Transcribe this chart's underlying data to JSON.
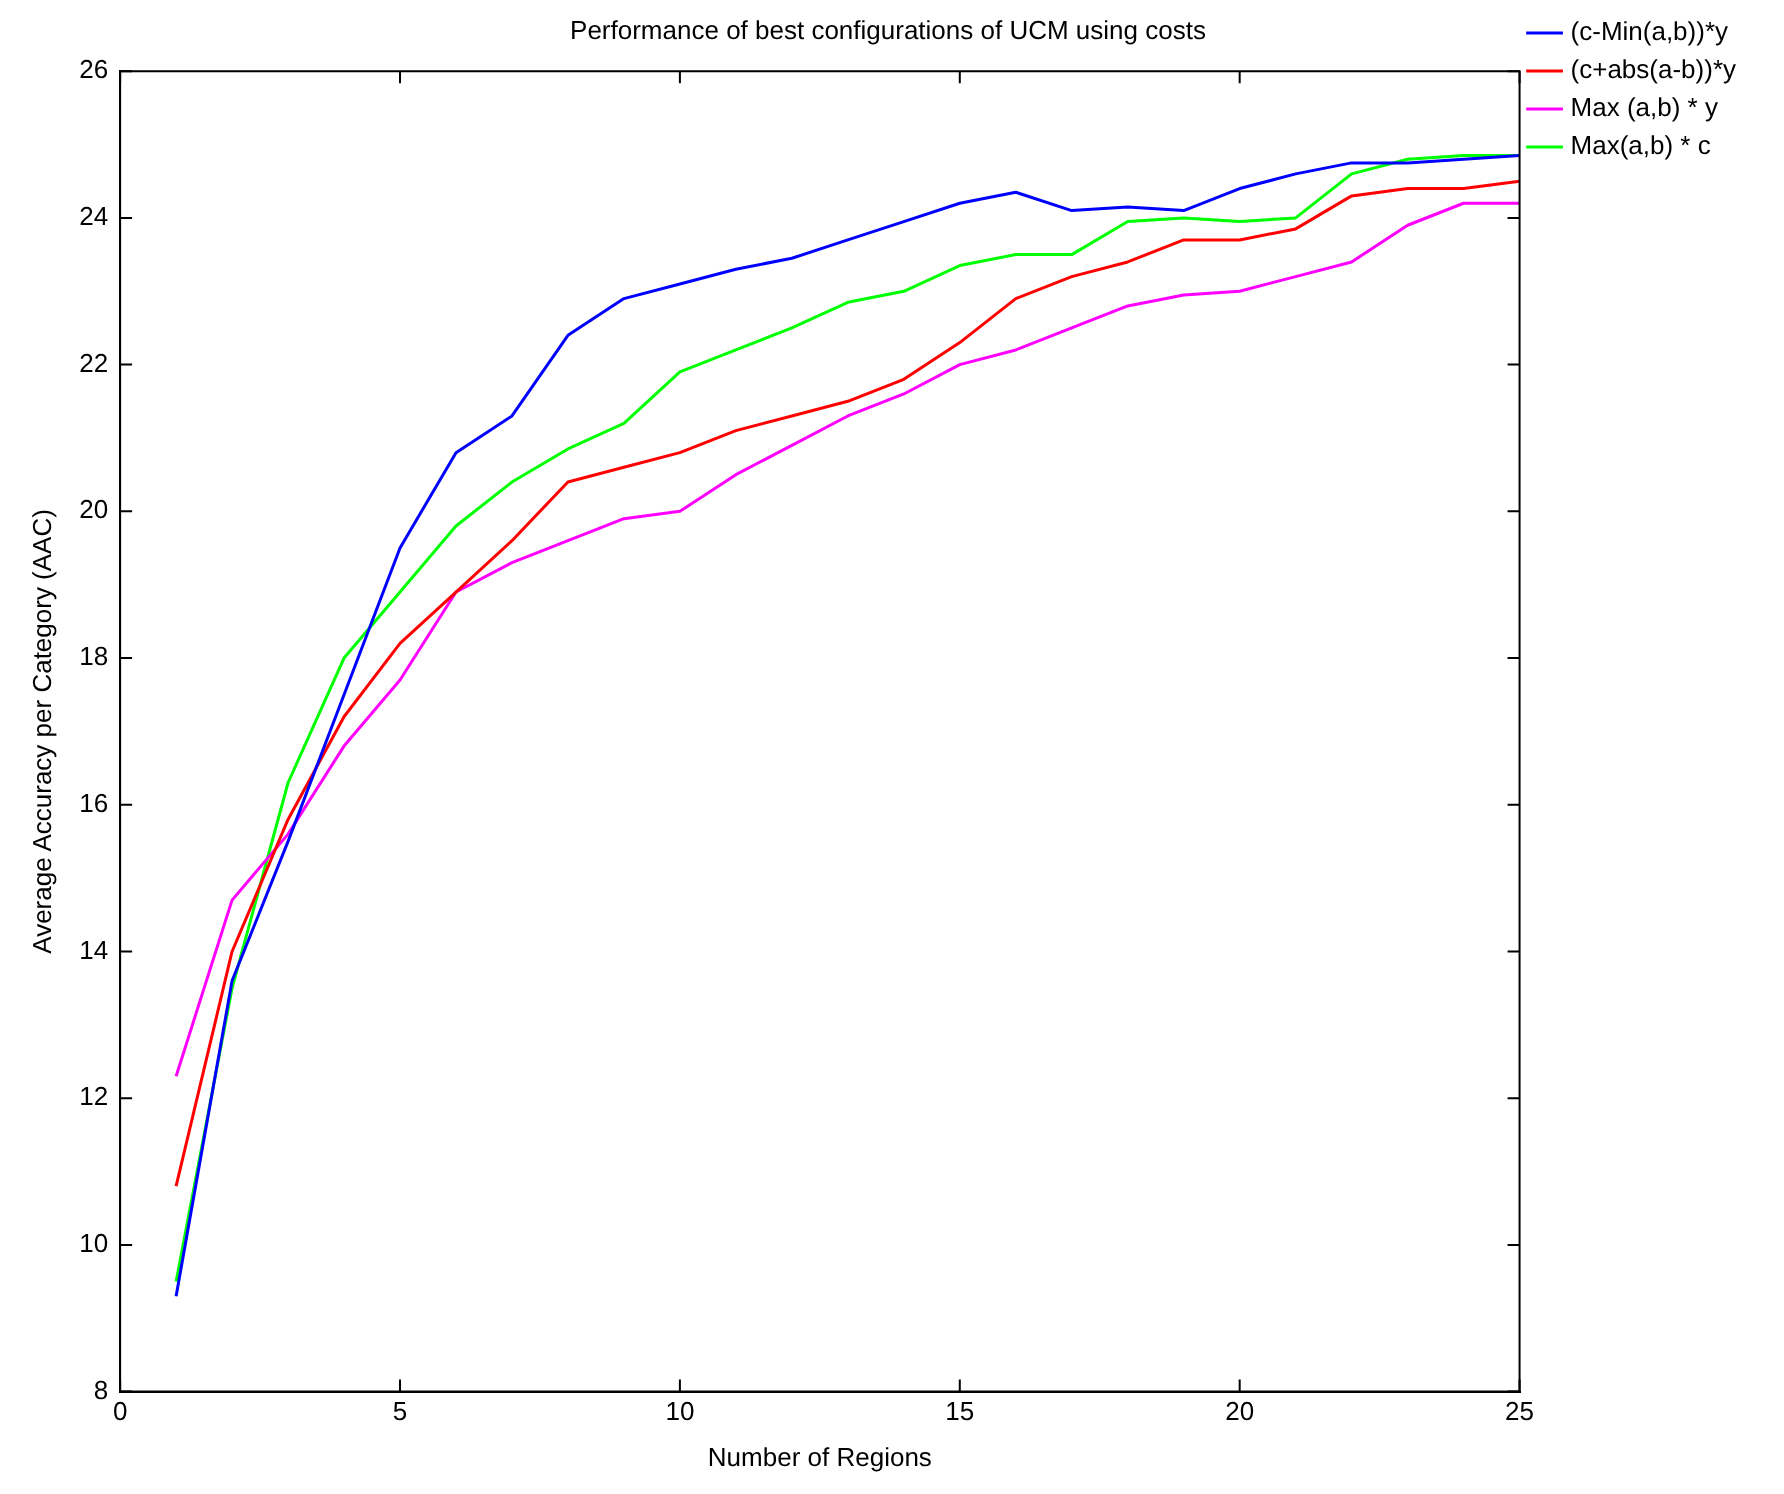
{
  "chart_data": {
    "type": "line",
    "title": "Performance of best configurations of UCM using costs",
    "xlabel": "Number of Regions",
    "ylabel": "Average Accuracy per Category (AAC)",
    "x": [
      1,
      2,
      3,
      4,
      5,
      6,
      7,
      8,
      9,
      10,
      11,
      12,
      13,
      14,
      15,
      16,
      17,
      18,
      19,
      20,
      21,
      22,
      23,
      24,
      25
    ],
    "series": [
      {
        "name": "(c-Min(a,b))*y",
        "color": "#0000ff",
        "values": [
          9.3,
          13.6,
          15.5,
          17.5,
          19.5,
          20.8,
          21.3,
          22.4,
          22.9,
          23.1,
          23.3,
          23.45,
          23.7,
          23.95,
          24.2,
          24.35,
          24.1,
          24.15,
          24.1,
          24.4,
          24.6,
          24.75,
          24.75,
          24.8,
          24.85
        ]
      },
      {
        "name": "(c+abs(a-b))*y",
        "color": "#ff0000",
        "values": [
          10.8,
          14.0,
          15.8,
          17.2,
          18.2,
          18.9,
          19.6,
          20.4,
          20.6,
          20.8,
          21.1,
          21.3,
          21.5,
          21.8,
          22.3,
          22.9,
          23.2,
          23.4,
          23.7,
          23.7,
          23.85,
          24.3,
          24.4,
          24.4,
          24.5
        ]
      },
      {
        "name": "Max (a,b) * y",
        "color": "#ff00ff",
        "values": [
          12.3,
          14.7,
          15.6,
          16.8,
          17.7,
          18.9,
          19.3,
          19.6,
          19.9,
          20.0,
          20.5,
          20.9,
          21.3,
          21.6,
          22.0,
          22.2,
          22.5,
          22.8,
          22.95,
          23.0,
          23.2,
          23.4,
          23.9,
          24.2,
          24.2
        ]
      },
      {
        "name": "Max(a,b) * c",
        "color": "#00ff00",
        "values": [
          9.5,
          13.5,
          16.3,
          18.0,
          18.9,
          19.8,
          20.4,
          20.85,
          21.2,
          21.9,
          22.2,
          22.5,
          22.85,
          23.0,
          23.35,
          23.5,
          23.5,
          23.95,
          24.0,
          23.95,
          24.0,
          24.6,
          24.8,
          24.85,
          24.85
        ]
      }
    ],
    "xlim": [
      0,
      25
    ],
    "xticks": [
      0,
      5,
      10,
      15,
      20,
      25
    ],
    "ylim": [
      8,
      26
    ],
    "yticks": [
      8,
      10,
      12,
      14,
      16,
      18,
      20,
      22,
      24,
      26
    ],
    "grid": false,
    "legend": "top right",
    "marker": "none",
    "line_style": "solid"
  }
}
